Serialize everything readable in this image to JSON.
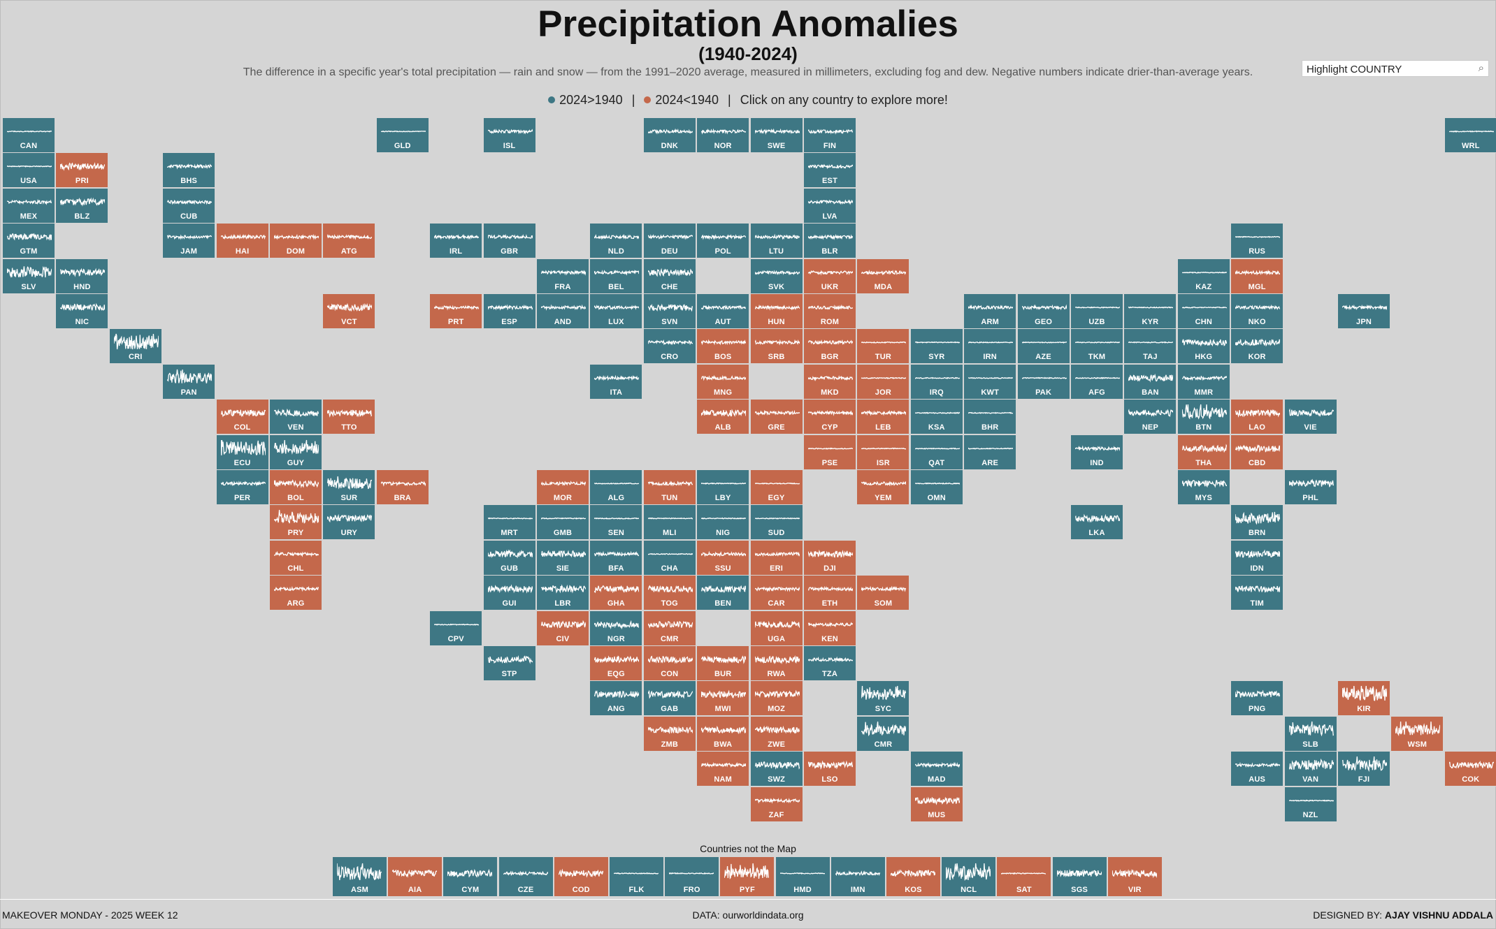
{
  "header": {
    "title": "Precipitation Anomalies",
    "years": "(1940-2024)",
    "subtitle": "The difference in a specific year's total precipitation — rain and snow — from the 1991–2020 average, measured in millimeters, excluding fog and dew. Negative numbers indicate drier-than-average years."
  },
  "legend": {
    "up_label": "2024>1940",
    "down_label": "2024<1940",
    "separator": "|",
    "cta": "Click on any country to explore more!",
    "up_color": "#3e7784",
    "down_color": "#c4684b"
  },
  "search": {
    "placeholder": "Highlight COUNTRY",
    "value": "",
    "icon": "search-icon"
  },
  "grid_columns": 28,
  "tiles": [
    [
      "CAN",
      0,
      0,
      "up",
      1
    ],
    [
      "GLD",
      7,
      0,
      "up",
      1
    ],
    [
      "ISL",
      9,
      0,
      "up",
      2
    ],
    [
      "DNK",
      12,
      0,
      "up",
      2
    ],
    [
      "NOR",
      13,
      0,
      "up",
      2
    ],
    [
      "SWE",
      14,
      0,
      "up",
      2
    ],
    [
      "FIN",
      15,
      0,
      "up",
      2
    ],
    [
      "WRL",
      27,
      0,
      "up",
      1
    ],
    [
      "USA",
      0,
      1,
      "up",
      1
    ],
    [
      "PRI",
      1,
      1,
      "down",
      3
    ],
    [
      "BHS",
      3,
      1,
      "up",
      2
    ],
    [
      "EST",
      15,
      1,
      "up",
      2
    ],
    [
      "MEX",
      0,
      2,
      "up",
      2
    ],
    [
      "BLZ",
      1,
      2,
      "up",
      3
    ],
    [
      "CUB",
      3,
      2,
      "up",
      2
    ],
    [
      "LVA",
      15,
      2,
      "up",
      2
    ],
    [
      "GTM",
      0,
      3,
      "up",
      3
    ],
    [
      "JAM",
      3,
      3,
      "up",
      2
    ],
    [
      "HAI",
      4,
      3,
      "down",
      2
    ],
    [
      "DOM",
      5,
      3,
      "down",
      2
    ],
    [
      "ATG",
      6,
      3,
      "down",
      2
    ],
    [
      "IRL",
      8,
      3,
      "up",
      2
    ],
    [
      "GBR",
      9,
      3,
      "up",
      2
    ],
    [
      "NLD",
      11,
      3,
      "up",
      2
    ],
    [
      "DEU",
      12,
      3,
      "up",
      2
    ],
    [
      "POL",
      13,
      3,
      "up",
      2
    ],
    [
      "LTU",
      14,
      3,
      "up",
      2
    ],
    [
      "BLR",
      15,
      3,
      "up",
      2
    ],
    [
      "RUS",
      23,
      3,
      "up",
      1
    ],
    [
      "SLV",
      0,
      4,
      "up",
      4
    ],
    [
      "HND",
      1,
      4,
      "up",
      3
    ],
    [
      "FRA",
      10,
      4,
      "up",
      2
    ],
    [
      "BEL",
      11,
      4,
      "up",
      2
    ],
    [
      "CHE",
      12,
      4,
      "up",
      3
    ],
    [
      "SVK",
      14,
      4,
      "up",
      2
    ],
    [
      "UKR",
      15,
      4,
      "down",
      2
    ],
    [
      "MDA",
      16,
      4,
      "down",
      2
    ],
    [
      "KAZ",
      22,
      4,
      "up",
      1
    ],
    [
      "MGL",
      23,
      4,
      "down",
      2
    ],
    [
      "NIC",
      1,
      5,
      "up",
      3
    ],
    [
      "VCT",
      6,
      5,
      "down",
      3
    ],
    [
      "PRT",
      8,
      5,
      "down",
      2
    ],
    [
      "ESP",
      9,
      5,
      "up",
      2
    ],
    [
      "AND",
      10,
      5,
      "up",
      2
    ],
    [
      "LUX",
      11,
      5,
      "up",
      2
    ],
    [
      "SVN",
      12,
      5,
      "up",
      3
    ],
    [
      "AUT",
      13,
      5,
      "up",
      2
    ],
    [
      "HUN",
      14,
      5,
      "down",
      2
    ],
    [
      "ROM",
      15,
      5,
      "down",
      2
    ],
    [
      "ARM",
      18,
      5,
      "up",
      2
    ],
    [
      "GEO",
      19,
      5,
      "up",
      2
    ],
    [
      "UZB",
      20,
      5,
      "up",
      1
    ],
    [
      "KYR",
      21,
      5,
      "up",
      1
    ],
    [
      "CHN",
      22,
      5,
      "up",
      1
    ],
    [
      "NKO",
      23,
      5,
      "up",
      2
    ],
    [
      "JPN",
      25,
      5,
      "up",
      2
    ],
    [
      "CRI",
      2,
      6,
      "up",
      5
    ],
    [
      "CRO",
      12,
      6,
      "up",
      2
    ],
    [
      "BOS",
      13,
      6,
      "down",
      2
    ],
    [
      "SRB",
      14,
      6,
      "down",
      2
    ],
    [
      "BGR",
      15,
      6,
      "down",
      2
    ],
    [
      "TUR",
      16,
      6,
      "down",
      1
    ],
    [
      "SYR",
      17,
      6,
      "up",
      1
    ],
    [
      "IRN",
      18,
      6,
      "up",
      1
    ],
    [
      "AZE",
      19,
      6,
      "up",
      1
    ],
    [
      "TKM",
      20,
      6,
      "up",
      1
    ],
    [
      "TAJ",
      21,
      6,
      "up",
      1
    ],
    [
      "HKG",
      22,
      6,
      "up",
      3
    ],
    [
      "KOR",
      23,
      6,
      "up",
      3
    ],
    [
      "PAN",
      3,
      7,
      "up",
      4
    ],
    [
      "ITA",
      11,
      7,
      "up",
      2
    ],
    [
      "MNG",
      13,
      7,
      "down",
      2
    ],
    [
      "MKD",
      15,
      7,
      "down",
      2
    ],
    [
      "JOR",
      16,
      7,
      "down",
      1
    ],
    [
      "IRQ",
      17,
      7,
      "up",
      1
    ],
    [
      "KWT",
      18,
      7,
      "up",
      1
    ],
    [
      "PAK",
      19,
      7,
      "up",
      1
    ],
    [
      "AFG",
      20,
      7,
      "up",
      1
    ],
    [
      "BAN",
      21,
      7,
      "up",
      3
    ],
    [
      "MMR",
      22,
      7,
      "up",
      2
    ],
    [
      "COL",
      4,
      8,
      "down",
      3
    ],
    [
      "VEN",
      5,
      8,
      "up",
      3
    ],
    [
      "TTO",
      6,
      8,
      "down",
      3
    ],
    [
      "ALB",
      13,
      8,
      "down",
      3
    ],
    [
      "GRE",
      14,
      8,
      "down",
      2
    ],
    [
      "CYP",
      15,
      8,
      "down",
      2
    ],
    [
      "LEB",
      16,
      8,
      "down",
      2
    ],
    [
      "KSA",
      17,
      8,
      "up",
      1
    ],
    [
      "BHR",
      18,
      8,
      "up",
      1
    ],
    [
      "NEP",
      21,
      8,
      "up",
      3
    ],
    [
      "BTN",
      22,
      8,
      "up",
      4
    ],
    [
      "LAO",
      23,
      8,
      "down",
      3
    ],
    [
      "VIE",
      24,
      8,
      "up",
      3
    ],
    [
      "ECU",
      4,
      9,
      "up",
      5
    ],
    [
      "GUY",
      5,
      9,
      "up",
      4
    ],
    [
      "PSE",
      15,
      9,
      "down",
      1
    ],
    [
      "ISR",
      16,
      9,
      "down",
      1
    ],
    [
      "QAT",
      17,
      9,
      "up",
      1
    ],
    [
      "ARE",
      18,
      9,
      "up",
      1
    ],
    [
      "IND",
      20,
      9,
      "up",
      2
    ],
    [
      "THA",
      22,
      9,
      "down",
      3
    ],
    [
      "CBD",
      23,
      9,
      "down",
      3
    ],
    [
      "PER",
      4,
      10,
      "up",
      2
    ],
    [
      "BOL",
      5,
      10,
      "down",
      3
    ],
    [
      "SUR",
      6,
      10,
      "up",
      4
    ],
    [
      "BRA",
      7,
      10,
      "down",
      2
    ],
    [
      "MOR",
      10,
      10,
      "down",
      2
    ],
    [
      "ALG",
      11,
      10,
      "up",
      1
    ],
    [
      "TUN",
      12,
      10,
      "down",
      2
    ],
    [
      "LBY",
      13,
      10,
      "up",
      1
    ],
    [
      "EGY",
      14,
      10,
      "down",
      1
    ],
    [
      "YEM",
      16,
      10,
      "down",
      2
    ],
    [
      "OMN",
      17,
      10,
      "up",
      1
    ],
    [
      "MYS",
      22,
      10,
      "up",
      3
    ],
    [
      "PHL",
      24,
      10,
      "up",
      3
    ],
    [
      "PRY",
      5,
      11,
      "down",
      4
    ],
    [
      "URY",
      6,
      11,
      "up",
      3
    ],
    [
      "MRT",
      9,
      11,
      "up",
      1
    ],
    [
      "GMB",
      10,
      11,
      "up",
      1
    ],
    [
      "SEN",
      11,
      11,
      "up",
      1
    ],
    [
      "MLI",
      12,
      11,
      "up",
      1
    ],
    [
      "NIG",
      13,
      11,
      "up",
      1
    ],
    [
      "SUD",
      14,
      11,
      "up",
      1
    ],
    [
      "LKA",
      20,
      11,
      "up",
      3
    ],
    [
      "BRN",
      23,
      11,
      "up",
      4
    ],
    [
      "CHL",
      5,
      12,
      "down",
      2
    ],
    [
      "GUB",
      9,
      12,
      "up",
      3
    ],
    [
      "SIE",
      10,
      12,
      "up",
      3
    ],
    [
      "BFA",
      11,
      12,
      "up",
      2
    ],
    [
      "CHA",
      12,
      12,
      "up",
      1
    ],
    [
      "SSU",
      13,
      12,
      "down",
      2
    ],
    [
      "ERI",
      14,
      12,
      "down",
      2
    ],
    [
      "DJI",
      15,
      12,
      "down",
      3
    ],
    [
      "IDN",
      23,
      12,
      "up",
      3
    ],
    [
      "ARG",
      5,
      13,
      "down",
      2
    ],
    [
      "GUI",
      9,
      13,
      "up",
      3
    ],
    [
      "LBR",
      10,
      13,
      "up",
      3
    ],
    [
      "GHA",
      11,
      13,
      "down",
      3
    ],
    [
      "TOG",
      12,
      13,
      "down",
      3
    ],
    [
      "BEN",
      13,
      13,
      "up",
      3
    ],
    [
      "CAR",
      14,
      13,
      "down",
      2
    ],
    [
      "ETH",
      15,
      13,
      "down",
      2
    ],
    [
      "SOM",
      16,
      13,
      "down",
      2
    ],
    [
      "TIM",
      23,
      13,
      "up",
      3
    ],
    [
      "CPV",
      8,
      14,
      "up",
      1
    ],
    [
      "CIV",
      10,
      14,
      "down",
      3
    ],
    [
      "NGR",
      11,
      14,
      "up",
      3
    ],
    [
      "CMR",
      12,
      14,
      "down",
      3
    ],
    [
      "UGA",
      14,
      14,
      "down",
      3
    ],
    [
      "KEN",
      15,
      14,
      "down",
      2
    ],
    [
      "STP",
      9,
      15,
      "up",
      3
    ],
    [
      "EQG",
      11,
      15,
      "down",
      3
    ],
    [
      "CON",
      12,
      15,
      "down",
      3
    ],
    [
      "BUR",
      13,
      15,
      "down",
      3
    ],
    [
      "RWA",
      14,
      15,
      "down",
      3
    ],
    [
      "TZA",
      15,
      15,
      "up",
      2
    ],
    [
      "ANG",
      11,
      16,
      "up",
      3
    ],
    [
      "GAB",
      12,
      16,
      "up",
      3
    ],
    [
      "MWI",
      13,
      16,
      "down",
      3
    ],
    [
      "MOZ",
      14,
      16,
      "down",
      3
    ],
    [
      "SYC",
      16,
      16,
      "up",
      4
    ],
    [
      "PNG",
      23,
      16,
      "up",
      3
    ],
    [
      "KIR",
      25,
      16,
      "down",
      5
    ],
    [
      "ZMB",
      12,
      17,
      "down",
      3
    ],
    [
      "BWA",
      13,
      17,
      "down",
      3
    ],
    [
      "ZWE",
      14,
      17,
      "down",
      3
    ],
    [
      "CMR",
      16,
      17,
      "up",
      4
    ],
    [
      "SLB",
      24,
      17,
      "up",
      4
    ],
    [
      "WSM",
      26,
      17,
      "down",
      4
    ],
    [
      "NAM",
      13,
      18,
      "down",
      2
    ],
    [
      "SWZ",
      14,
      18,
      "up",
      3
    ],
    [
      "LSO",
      15,
      18,
      "down",
      3
    ],
    [
      "MAD",
      17,
      18,
      "up",
      2
    ],
    [
      "AUS",
      23,
      18,
      "up",
      2
    ],
    [
      "VAN",
      24,
      18,
      "up",
      4
    ],
    [
      "FJI",
      25,
      18,
      "up",
      4
    ],
    [
      "COK",
      27,
      18,
      "down",
      3
    ],
    [
      "ZAF",
      14,
      19,
      "down",
      2
    ],
    [
      "MUS",
      17,
      19,
      "down",
      3
    ],
    [
      "NZL",
      24,
      19,
      "up",
      1
    ]
  ],
  "not_on_map": {
    "title": "Countries not the Map",
    "tiles": [
      [
        "ASM",
        "up",
        5
      ],
      [
        "AIA",
        "down",
        3
      ],
      [
        "CYM",
        "up",
        3
      ],
      [
        "CZE",
        "up",
        2
      ],
      [
        "COD",
        "down",
        3
      ],
      [
        "FLK",
        "up",
        1
      ],
      [
        "FRO",
        "up",
        1
      ],
      [
        "PYF",
        "down",
        4
      ],
      [
        "HMD",
        "up",
        1
      ],
      [
        "IMN",
        "up",
        2
      ],
      [
        "KOS",
        "down",
        3
      ],
      [
        "NCL",
        "up",
        5
      ],
      [
        "SAT",
        "down",
        1
      ],
      [
        "SGS",
        "up",
        3
      ],
      [
        "VIR",
        "down",
        3
      ]
    ]
  },
  "footer": {
    "left": "MAKEOVER MONDAY - 2025 WEEK 12",
    "middle": "DATA: ourworldindata.org",
    "right_prefix": "DESIGNED BY: ",
    "right_name": "AJAY VISHNU ADDALA"
  }
}
